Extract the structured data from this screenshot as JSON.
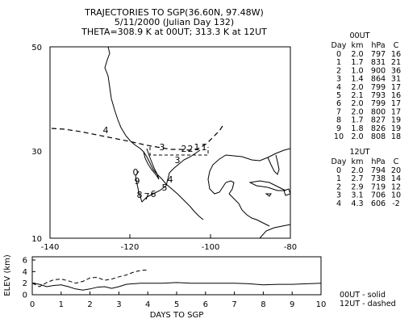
{
  "title": {
    "line1": "TRAJECTORIES TO SGP(36.60N, 97.48W)",
    "line2": "5/11/2000 (Julian Day 132)",
    "line3": "THETA=308.9 K at 00UT; 313.3 K at 12UT"
  },
  "map": {
    "lon_ticks": [
      "-140",
      "-120",
      "-100",
      "-80"
    ],
    "lat_ticks": [
      "50",
      "30",
      "10"
    ],
    "lon_range": [
      -140,
      -80
    ],
    "lat_range": [
      10,
      50
    ],
    "grid": false
  },
  "trajectory_00ut": {
    "style": "solid",
    "labels": [
      "0",
      "9",
      "8",
      "7",
      "6",
      "5",
      "4",
      "3",
      "2",
      "1"
    ]
  },
  "trajectory_12ut": {
    "style": "dashed",
    "labels": [
      "4",
      "3",
      "2",
      "1"
    ]
  },
  "table_00ut": {
    "title": "00UT",
    "headers": [
      "Day",
      "km",
      "hPa",
      "C"
    ],
    "rows": [
      [
        "0",
        "2.0",
        "797",
        "16"
      ],
      [
        "1",
        "1.7",
        "831",
        "21"
      ],
      [
        "2",
        "1.0",
        "900",
        "36"
      ],
      [
        "3",
        "1.4",
        "864",
        "31"
      ],
      [
        "4",
        "2.0",
        "799",
        "17"
      ],
      [
        "5",
        "2.1",
        "793",
        "16"
      ],
      [
        "6",
        "2.0",
        "799",
        "17"
      ],
      [
        "7",
        "2.0",
        "800",
        "17"
      ],
      [
        "8",
        "1.7",
        "827",
        "19"
      ],
      [
        "9",
        "1.8",
        "826",
        "19"
      ],
      [
        "10",
        "2.0",
        "808",
        "18"
      ]
    ]
  },
  "table_12ut": {
    "title": "12UT",
    "rows": [
      [
        "0",
        "2.0",
        "794",
        "20"
      ],
      [
        "1",
        "2.7",
        "738",
        "14"
      ],
      [
        "2",
        "2.9",
        "719",
        "12"
      ],
      [
        "3",
        "3.1",
        "706",
        "10"
      ],
      [
        "4",
        "4.3",
        "606",
        "-2"
      ]
    ]
  },
  "chart_data": {
    "type": "line",
    "xlabel": "DAYS TO SGP",
    "ylabel": "ELEV (km)",
    "x_ticks": [
      "0",
      "1",
      "2",
      "3",
      "4",
      "5",
      "6",
      "7",
      "8",
      "9",
      "10"
    ],
    "y_ticks": [
      "6",
      "4",
      "2",
      "0"
    ],
    "xlim": [
      0,
      10
    ],
    "ylim": [
      0,
      6
    ],
    "legend": {
      "solid": "00UT - solid",
      "dashed": "12UT - dashed",
      "placement": "right"
    },
    "series": [
      {
        "style": "solid",
        "x": [
          0,
          0.25,
          0.5,
          0.75,
          1,
          1.25,
          1.5,
          1.75,
          2,
          2.25,
          2.5,
          2.75,
          3,
          3.25,
          3.5,
          3.75,
          4,
          4.5,
          5,
          5.5,
          6,
          6.5,
          7,
          7.5,
          8,
          8.5,
          9,
          9.5,
          10
        ],
        "values": [
          2.0,
          1.8,
          1.4,
          1.6,
          1.7,
          1.4,
          1.0,
          0.8,
          1.0,
          1.3,
          1.4,
          1.1,
          1.4,
          1.8,
          1.9,
          2.0,
          2.0,
          2.0,
          2.1,
          2.0,
          2.0,
          2.0,
          2.0,
          1.9,
          1.7,
          1.8,
          1.8,
          1.9,
          2.0
        ]
      },
      {
        "style": "dashed",
        "x": [
          0,
          0.25,
          0.5,
          0.75,
          1,
          1.25,
          1.5,
          1.75,
          2,
          2.25,
          2.5,
          2.75,
          3,
          3.25,
          3.5,
          3.75,
          4
        ],
        "values": [
          2.0,
          1.4,
          2.1,
          2.6,
          2.7,
          2.4,
          2.0,
          2.3,
          2.9,
          3.0,
          2.5,
          2.7,
          3.1,
          3.4,
          3.9,
          4.2,
          4.3
        ]
      }
    ]
  }
}
